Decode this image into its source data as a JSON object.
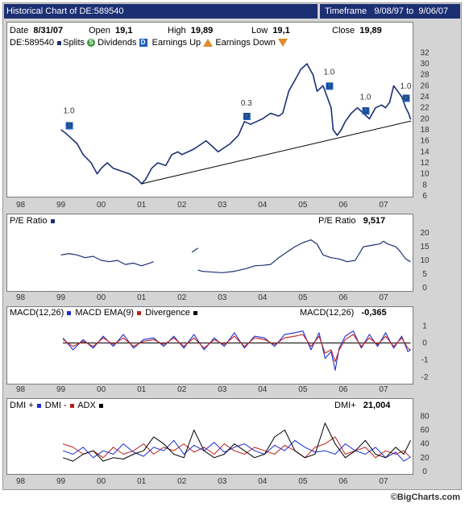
{
  "header": {
    "title": "Historical Chart of DE:589540",
    "timeframe_label": "Timeframe",
    "timeframe_from": "9/08/97",
    "timeframe_to_word": "to",
    "timeframe_to": "9/06/07"
  },
  "quote": {
    "date_label": "Date",
    "date": "8/31/07",
    "open_label": "Open",
    "open": "19,1",
    "high_label": "High",
    "high": "19,89",
    "low_label": "Low",
    "low": "19,1",
    "close_label": "Close",
    "close": "19,89"
  },
  "legend": {
    "symbol": "DE:589540",
    "splits": "Splits",
    "dividends": "Dividends",
    "earnings_up": "Earnings Up",
    "earnings_down": "Earnings Down"
  },
  "colors": {
    "price": "#1c2f73",
    "ema": "#1c2fd6",
    "divergence": "#c0201c",
    "black": "#000000",
    "dividend_marker": "#1c5fbf"
  },
  "footer": "©BigCharts.com",
  "chart_data": [
    {
      "type": "line",
      "name": "price",
      "x_ticks": [
        "98",
        "99",
        "00",
        "01",
        "02",
        "03",
        "04",
        "05",
        "06",
        "07"
      ],
      "y_ticks": [
        6,
        8,
        10,
        12,
        14,
        16,
        18,
        20,
        22,
        24,
        26,
        28,
        30,
        32
      ],
      "ylim": [
        6,
        32.5
      ],
      "xlim": [
        1997.69,
        2007.68
      ],
      "x": [
        1999.0,
        1999.1,
        1999.25,
        1999.4,
        1999.55,
        1999.75,
        1999.9,
        2000.0,
        2000.15,
        2000.3,
        2000.5,
        2000.7,
        2000.9,
        2001.0,
        2001.1,
        2001.25,
        2001.4,
        2001.6,
        2001.75,
        2001.9,
        2002.0,
        2002.15,
        2002.3,
        2002.4,
        2002.5,
        2002.6,
        2002.75,
        2002.9,
        2003.0,
        2003.2,
        2003.4,
        2003.55,
        2003.7,
        2003.85,
        2004.0,
        2004.2,
        2004.4,
        2004.5,
        2004.65,
        2004.8,
        2004.95,
        2005.1,
        2005.25,
        2005.35,
        2005.5,
        2005.6,
        2005.7,
        2005.75,
        2005.85,
        2005.95,
        2006.05,
        2006.2,
        2006.35,
        2006.5,
        2006.65,
        2006.8,
        2006.95,
        2007.05,
        2007.15,
        2007.25,
        2007.35,
        2007.45,
        2007.55,
        2007.62,
        2007.67
      ],
      "y": [
        18,
        17.5,
        16.5,
        15.5,
        13.5,
        12,
        10,
        11,
        12,
        11,
        10.5,
        10,
        9,
        8.2,
        9,
        11,
        12,
        11.5,
        13.5,
        14,
        13.5,
        14,
        14.5,
        15,
        15.5,
        16,
        15,
        14,
        14.5,
        15.5,
        17,
        19.5,
        19,
        19.5,
        20,
        21,
        20.5,
        21,
        25,
        27,
        29,
        30,
        28,
        25,
        26,
        24,
        22,
        18,
        17,
        18,
        19.5,
        21,
        22,
        21,
        20,
        22,
        22.5,
        22,
        23,
        26,
        25,
        24,
        22,
        21,
        19.9
      ],
      "trendline": {
        "x": [
          2001.0,
          2007.68
        ],
        "y": [
          8.2,
          19.6
        ]
      },
      "split_labels": [
        {
          "x": 1999.2,
          "y": 21.0,
          "label": "1.0"
        },
        {
          "x": 2003.6,
          "y": 22.4,
          "label": "0.3"
        },
        {
          "x": 2005.65,
          "y": 28.0,
          "label": "1.0"
        },
        {
          "x": 2006.55,
          "y": 23.5,
          "label": "1.0"
        },
        {
          "x": 2007.55,
          "y": 25.5,
          "label": "1.0"
        }
      ],
      "dividend_markers": [
        {
          "x": 1999.2,
          "y": 18.8
        },
        {
          "x": 2003.6,
          "y": 20.5
        },
        {
          "x": 2005.65,
          "y": 26.0
        },
        {
          "x": 2006.55,
          "y": 21.5
        },
        {
          "x": 2007.55,
          "y": 23.8
        }
      ]
    },
    {
      "type": "line",
      "name": "P/E Ratio",
      "label": "P/E Ratio",
      "value_label": "P/E Ratio",
      "value": "9,517",
      "y_ticks": [
        0,
        5,
        10,
        15,
        20
      ],
      "ylim": [
        0,
        21.5
      ],
      "segments": [
        {
          "x": [
            1999.0,
            1999.2,
            1999.4,
            1999.6,
            1999.8,
            2000.0,
            2000.2,
            2000.4,
            2000.6,
            2000.8,
            2001.0,
            2001.2,
            2001.3
          ],
          "y": [
            12,
            12.5,
            12,
            11,
            11.5,
            10,
            9.5,
            10,
            8.5,
            9,
            8,
            9,
            9.5
          ]
        },
        {
          "x": [
            2002.25,
            2002.4
          ],
          "y": [
            13,
            14.5
          ]
        },
        {
          "x": [
            2002.4,
            2002.5,
            2002.7,
            2003.0,
            2003.3,
            2003.6,
            2003.8,
            2004.0,
            2004.2,
            2004.4,
            2004.6,
            2004.8,
            2005.0,
            2005.1,
            2005.2,
            2005.35,
            2005.5,
            2005.7,
            2005.9,
            2006.1,
            2006.3,
            2006.5,
            2006.7,
            2006.9,
            2007.0,
            2007.1,
            2007.3,
            2007.4,
            2007.55,
            2007.67
          ],
          "y": [
            6.5,
            6,
            5.8,
            5.5,
            6,
            7,
            8,
            8.2,
            8.5,
            11,
            13,
            15,
            16.5,
            17,
            17.5,
            16,
            12,
            11,
            10.5,
            9.5,
            10,
            15,
            15.5,
            16,
            17,
            16,
            15,
            13.5,
            10.5,
            9.5
          ]
        }
      ]
    },
    {
      "type": "line",
      "name": "MACD",
      "label": "MACD(12,26)",
      "ema_label": "MACD EMA(9)",
      "divergence_label": "Divergence",
      "value_label": "MACD(12,26)",
      "value": "-0,365",
      "y_ticks": [
        -2,
        -1,
        0,
        1
      ],
      "ylim": [
        -2.1,
        1.3
      ],
      "x": [
        1999.05,
        1999.3,
        1999.55,
        1999.8,
        2000.05,
        2000.3,
        2000.55,
        2000.8,
        2001.05,
        2001.3,
        2001.55,
        2001.8,
        2002.05,
        2002.3,
        2002.55,
        2002.8,
        2003.05,
        2003.3,
        2003.55,
        2003.8,
        2004.05,
        2004.3,
        2004.55,
        2004.8,
        2005.0,
        2005.2,
        2005.4,
        2005.55,
        2005.7,
        2005.8,
        2005.9,
        2006.05,
        2006.25,
        2006.45,
        2006.65,
        2006.85,
        2007.05,
        2007.25,
        2007.45,
        2007.6,
        2007.67
      ],
      "macd": [
        0.3,
        -0.4,
        0.2,
        -0.3,
        0.4,
        -0.2,
        0.5,
        -0.3,
        0.2,
        0.3,
        -0.2,
        0.4,
        -0.3,
        0.5,
        -0.4,
        0.3,
        -0.2,
        0.6,
        -0.3,
        0.4,
        0.3,
        -0.2,
        0.5,
        0.6,
        0.7,
        -0.4,
        0.6,
        -0.9,
        -0.5,
        -1.6,
        -0.3,
        0.4,
        0.7,
        -0.3,
        0.5,
        -0.2,
        0.6,
        -0.3,
        0.4,
        -0.5,
        -0.4
      ],
      "ema": [
        0.2,
        -0.2,
        0.1,
        -0.2,
        0.3,
        -0.1,
        0.3,
        -0.2,
        0.1,
        0.2,
        -0.1,
        0.3,
        -0.2,
        0.3,
        -0.3,
        0.2,
        -0.1,
        0.4,
        -0.2,
        0.3,
        0.2,
        -0.1,
        0.3,
        0.4,
        0.5,
        -0.2,
        0.4,
        -0.6,
        -0.4,
        -1.1,
        -0.4,
        0.2,
        0.5,
        -0.2,
        0.3,
        -0.1,
        0.4,
        -0.2,
        0.3,
        -0.3,
        -0.4
      ],
      "divergence": [
        0,
        0,
        0,
        0,
        0,
        0,
        0,
        0,
        0,
        0,
        0,
        0,
        0,
        0,
        0,
        0,
        0,
        0,
        0,
        0,
        0,
        0,
        0,
        0,
        0,
        0,
        0,
        0,
        0,
        0,
        0,
        0,
        0,
        0,
        0,
        0,
        0,
        0,
        0,
        0,
        0
      ]
    },
    {
      "type": "line",
      "name": "DMI",
      "dmi_plus_label": "DMI +",
      "dmi_minus_label": "DMI -",
      "adx_label": "ADX",
      "value_label": "DMI+",
      "value": "21,004",
      "y_ticks": [
        0,
        20,
        40,
        60,
        80
      ],
      "ylim": [
        0,
        85
      ],
      "x": [
        1999.05,
        1999.3,
        1999.55,
        1999.8,
        2000.05,
        2000.3,
        2000.55,
        2000.8,
        2001.05,
        2001.3,
        2001.55,
        2001.8,
        2002.05,
        2002.3,
        2002.55,
        2002.8,
        2003.05,
        2003.3,
        2003.55,
        2003.8,
        2004.05,
        2004.3,
        2004.55,
        2004.8,
        2005.05,
        2005.3,
        2005.55,
        2005.8,
        2006.05,
        2006.3,
        2006.55,
        2006.8,
        2007.05,
        2007.3,
        2007.5,
        2007.67
      ],
      "dmi_plus": [
        30,
        25,
        35,
        20,
        30,
        25,
        40,
        28,
        22,
        35,
        30,
        45,
        25,
        38,
        30,
        42,
        28,
        35,
        40,
        30,
        25,
        38,
        30,
        45,
        35,
        28,
        30,
        25,
        40,
        30,
        25,
        35,
        20,
        28,
        15,
        21
      ],
      "dmi_minus": [
        40,
        35,
        25,
        30,
        20,
        35,
        25,
        30,
        40,
        25,
        35,
        30,
        40,
        28,
        35,
        25,
        40,
        30,
        25,
        35,
        30,
        25,
        38,
        30,
        20,
        35,
        40,
        50,
        25,
        30,
        35,
        20,
        30,
        25,
        30,
        20
      ],
      "adx": [
        20,
        15,
        25,
        30,
        15,
        20,
        18,
        25,
        30,
        50,
        40,
        25,
        20,
        60,
        30,
        20,
        25,
        40,
        30,
        20,
        25,
        50,
        60,
        30,
        20,
        25,
        70,
        40,
        20,
        30,
        45,
        25,
        20,
        35,
        25,
        45
      ]
    }
  ]
}
